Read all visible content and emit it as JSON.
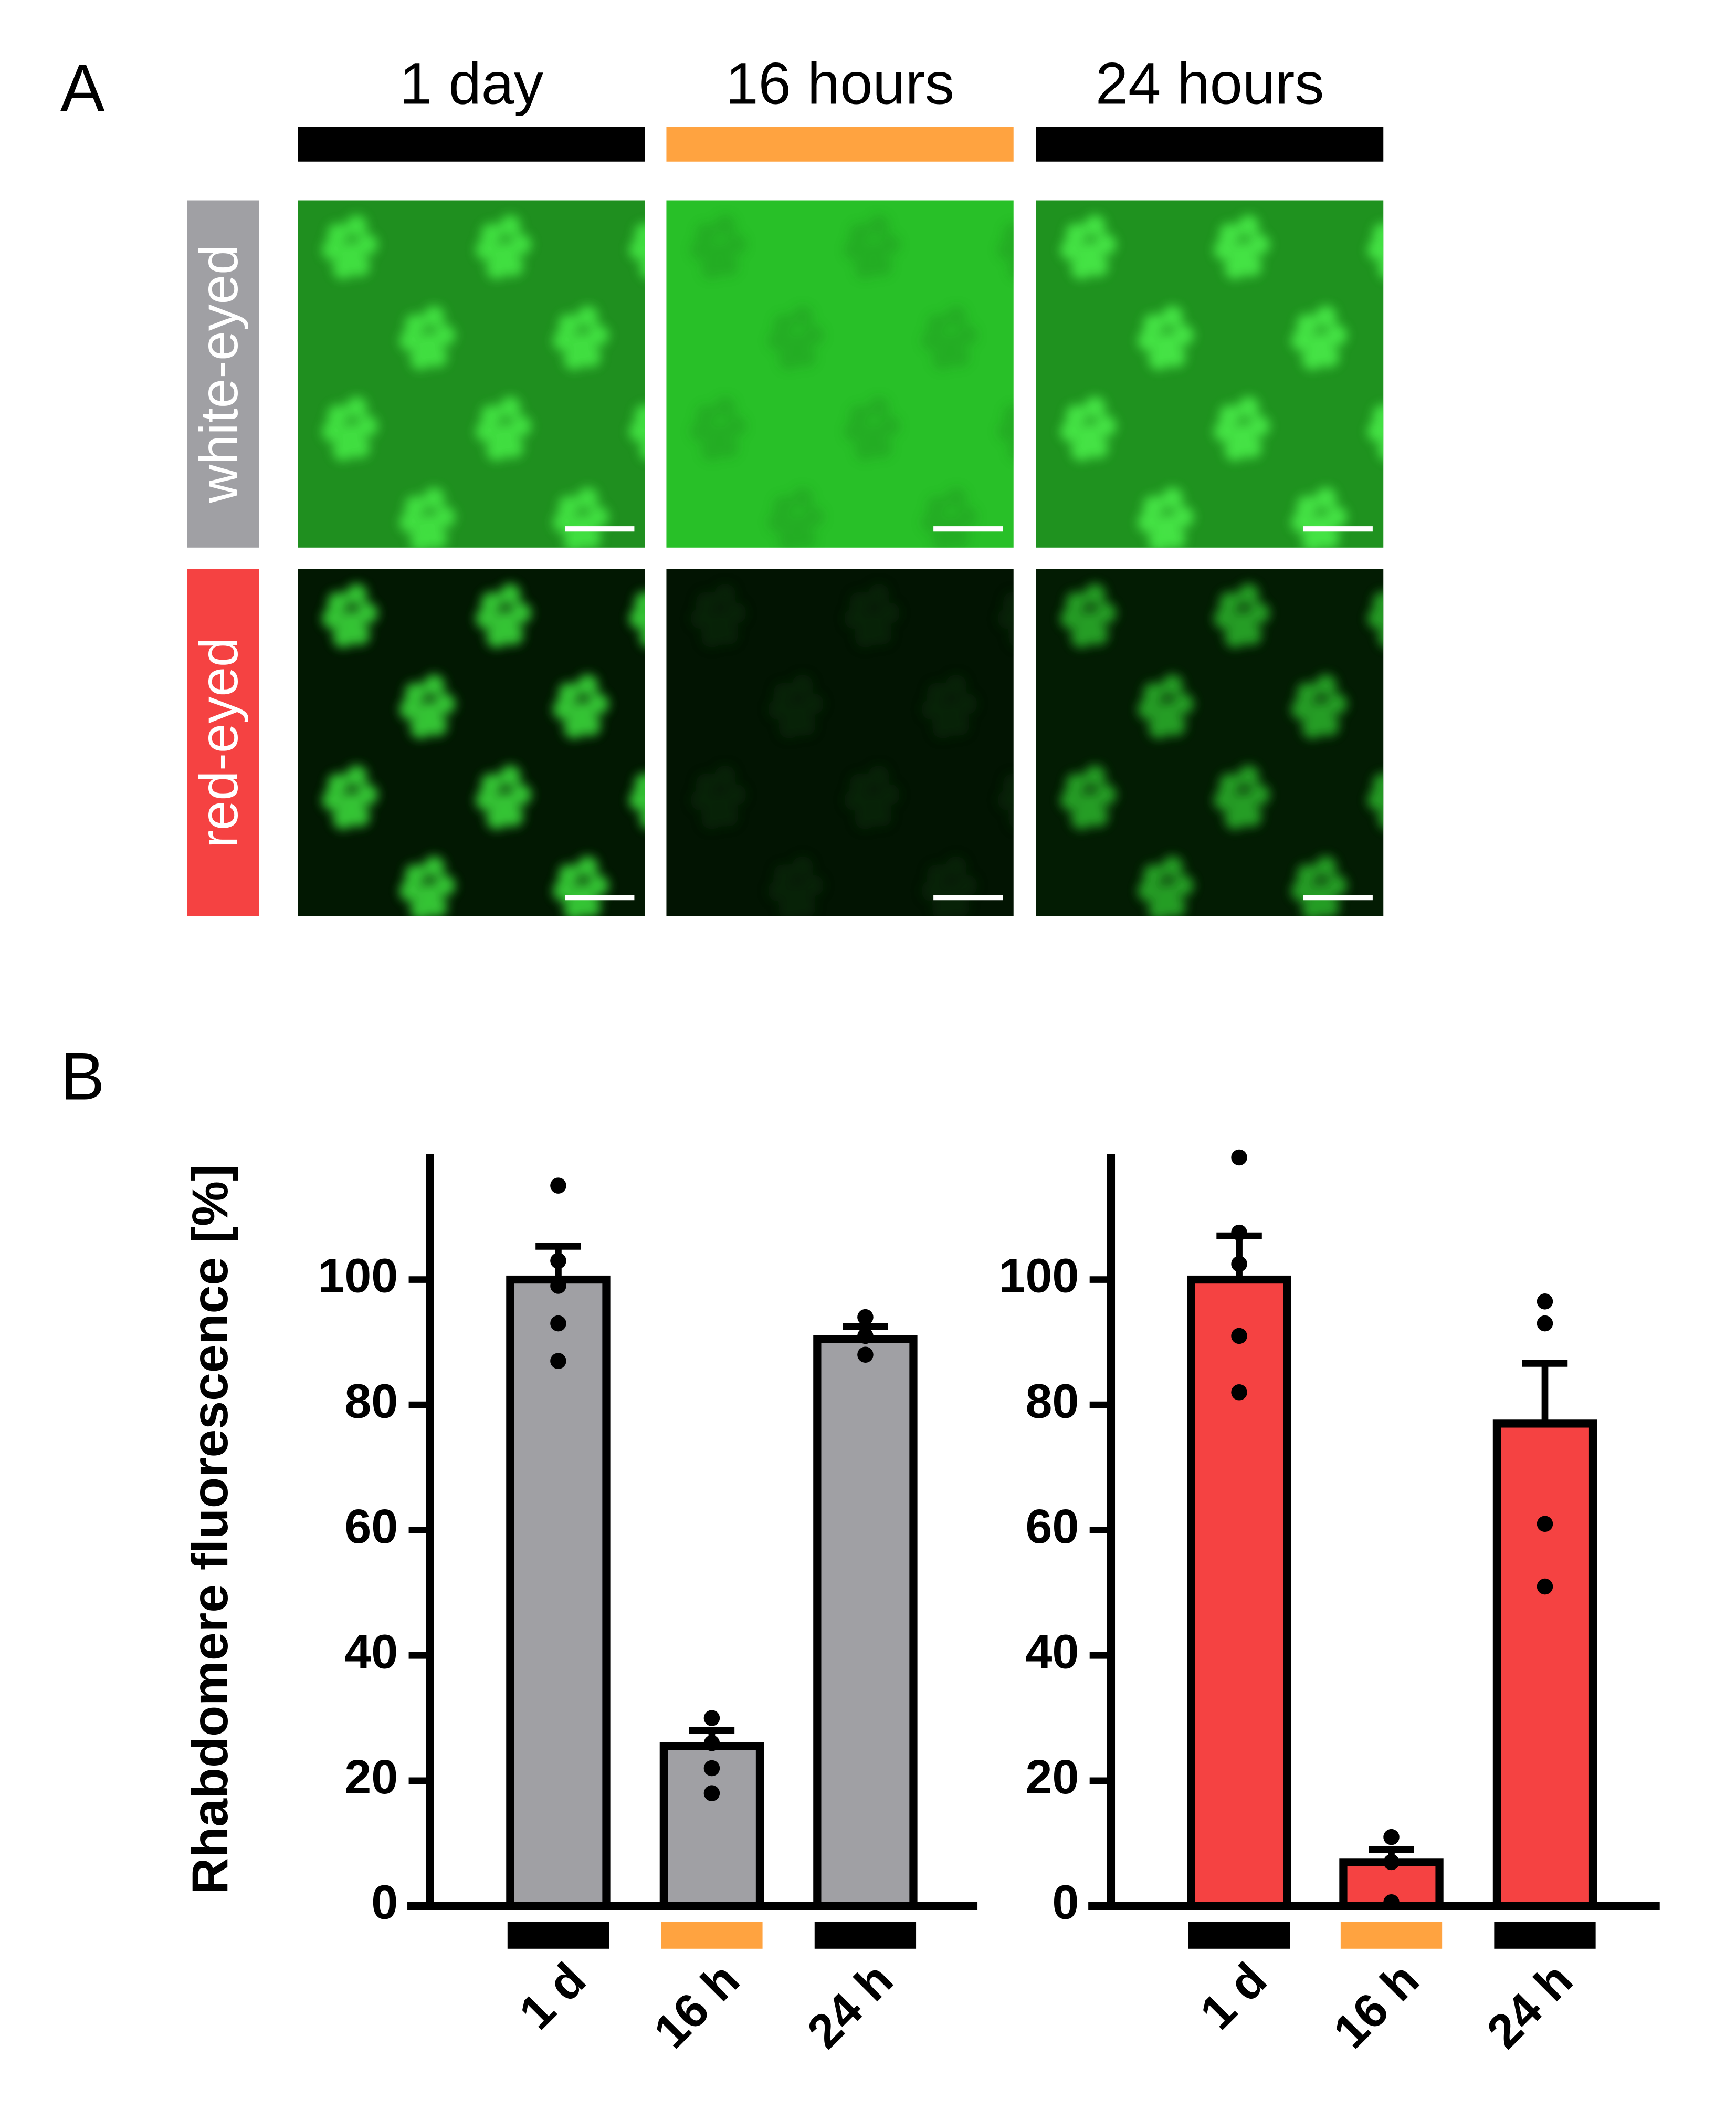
{
  "panel_a": {
    "label": "A",
    "columns": [
      "1 day",
      "16 hours",
      "24 hours"
    ],
    "column_colors": [
      "#000000",
      "#ffa340",
      "#000000"
    ],
    "rows": [
      "white-eyed",
      "red-eyed"
    ],
    "row_colors": [
      "#a0a0a4",
      "#f54242"
    ]
  },
  "panel_b": {
    "label": "B"
  },
  "chart_data": [
    {
      "type": "bar",
      "y_label": "Rhabdomere fluorescence [%]",
      "categories": [
        "1 d",
        "16 h",
        "24 h"
      ],
      "category_colors": [
        "#000000",
        "#ffa340",
        "#000000"
      ],
      "color": "#a0a0a4",
      "values": [
        100,
        25.5,
        90.5
      ],
      "errors": [
        5.3,
        2.5,
        2
      ],
      "points": [
        [
          115,
          103,
          99,
          93,
          87
        ],
        [
          30,
          26,
          22,
          18
        ],
        [
          94,
          91,
          88
        ]
      ],
      "ylim": [
        0,
        120
      ],
      "yticks": [
        0,
        20,
        40,
        60,
        80,
        100
      ]
    },
    {
      "type": "bar",
      "categories": [
        "1 d",
        "16 h",
        "24 h"
      ],
      "category_colors": [
        "#000000",
        "#ffa340",
        "#000000"
      ],
      "color": "#f54242",
      "values": [
        100,
        7,
        77
      ],
      "errors": [
        7,
        2,
        9.6
      ],
      "points": [
        [
          119.5,
          107.5,
          102.5,
          91,
          82
        ],
        [
          11,
          7,
          0.6
        ],
        [
          96.5,
          93,
          61,
          51
        ]
      ],
      "ylim": [
        0,
        120
      ],
      "yticks": [
        0,
        20,
        40,
        60,
        80,
        100
      ]
    }
  ]
}
